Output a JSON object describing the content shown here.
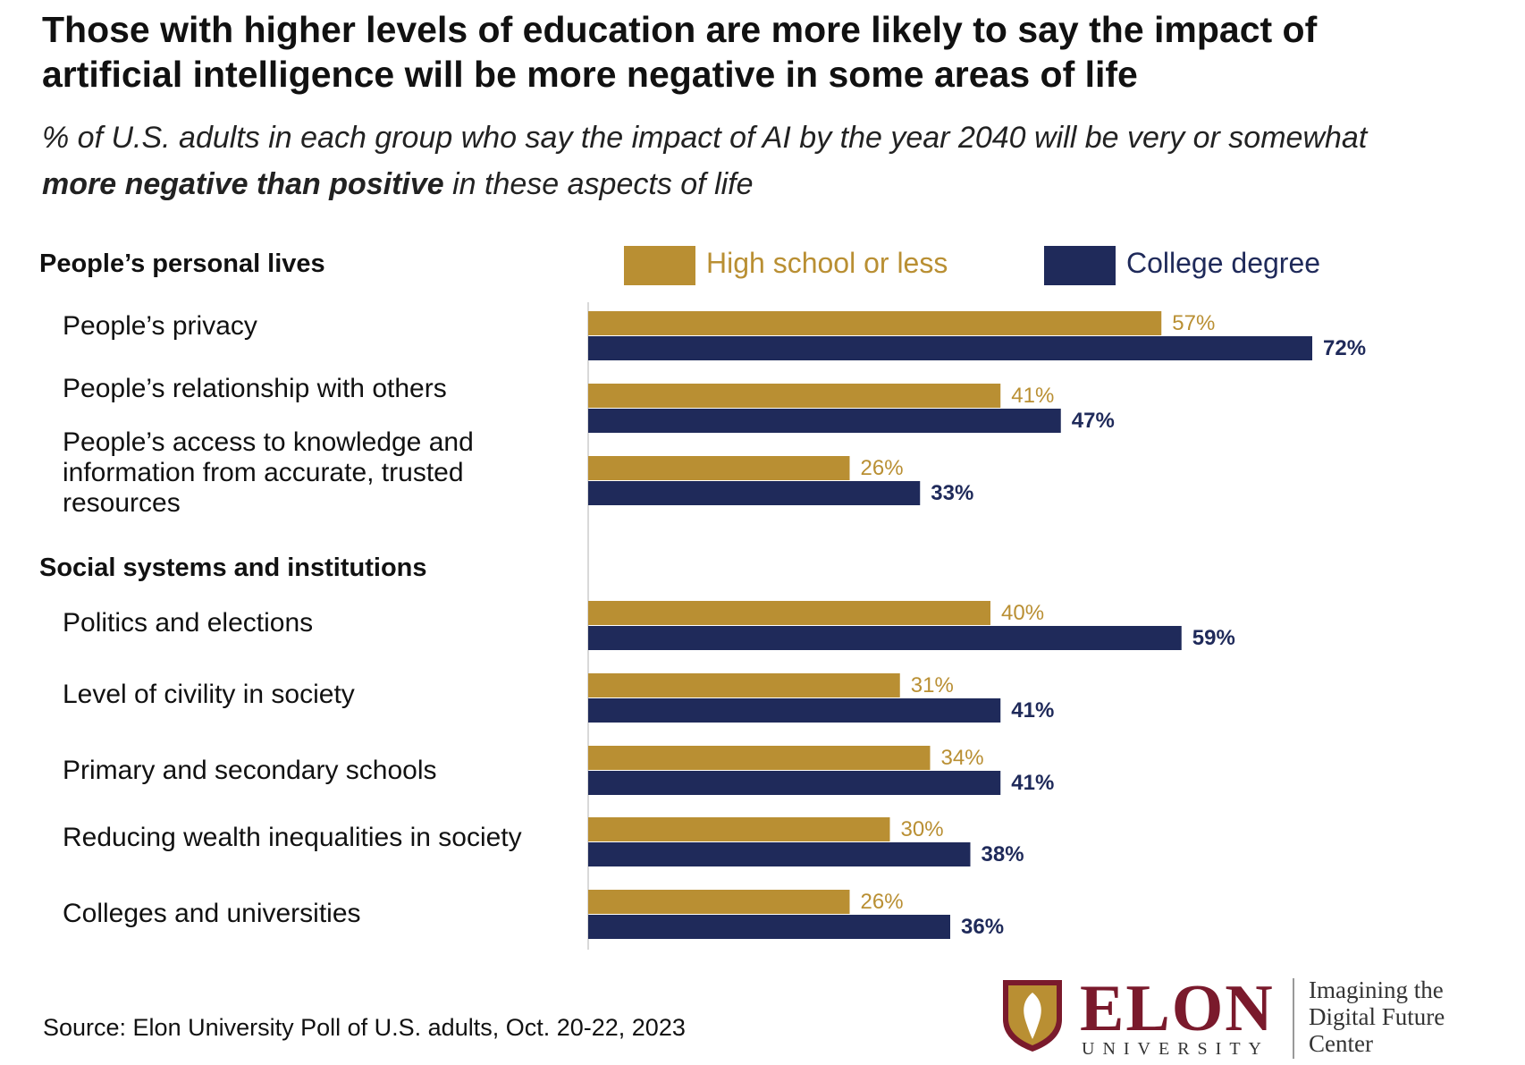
{
  "title_line1": "Those with higher levels of education are more likely to say the impact of",
  "title_line2": "artificial intelligence will be more negative in some areas of life",
  "subtitle_part1": "% of U.S. adults in each group who say the impact of AI by the year 2040 will be very or somewhat",
  "subtitle_bold": "more negative than positive",
  "subtitle_part2": " in these aspects of life",
  "sections": [
    "People’s personal lives",
    "Social systems and institutions"
  ],
  "categories": [
    [
      "People’s privacy"
    ],
    [
      "People’s relationship with others"
    ],
    [
      "People’s access to knowledge and",
      "information from accurate, trusted",
      "resources"
    ],
    [
      "Politics and elections"
    ],
    [
      "Level of civility in society"
    ],
    [
      "Primary and secondary schools"
    ],
    [
      "Reducing wealth inequalities in society"
    ],
    [
      "Colleges and universities"
    ]
  ],
  "legend": [
    "High school or less",
    "College degree"
  ],
  "colors": {
    "hs": "#b98f33",
    "college": "#1f2a5a",
    "hs_text": "#b98f33",
    "college_text": "#1f2a5a"
  },
  "chart_data": {
    "type": "bar",
    "orientation": "horizontal",
    "title": "Those with higher levels of education are more likely to say the impact of artificial intelligence will be more negative in some areas of life",
    "categories": [
      "People’s privacy",
      "People’s relationship with others",
      "People’s access to knowledge and information from accurate, trusted resources",
      "Politics and elections",
      "Level of civility in society",
      "Primary and secondary schools",
      "Reducing wealth inequalities in society",
      "Colleges and universities"
    ],
    "series": [
      {
        "name": "High school or less",
        "values": [
          57,
          41,
          26,
          40,
          31,
          34,
          30,
          26
        ]
      },
      {
        "name": "College degree",
        "values": [
          72,
          47,
          33,
          59,
          41,
          41,
          38,
          36
        ]
      }
    ],
    "unit": "%",
    "xlim": [
      0,
      100
    ],
    "legend": "top"
  },
  "source": "Source: Elon University Poll of U.S. adults, Oct. 20-22, 2023",
  "logo": {
    "name": "ELON",
    "sub": "UNIVERSITY",
    "center_lines": [
      "Imagining the",
      "Digital Future",
      "Center"
    ]
  }
}
